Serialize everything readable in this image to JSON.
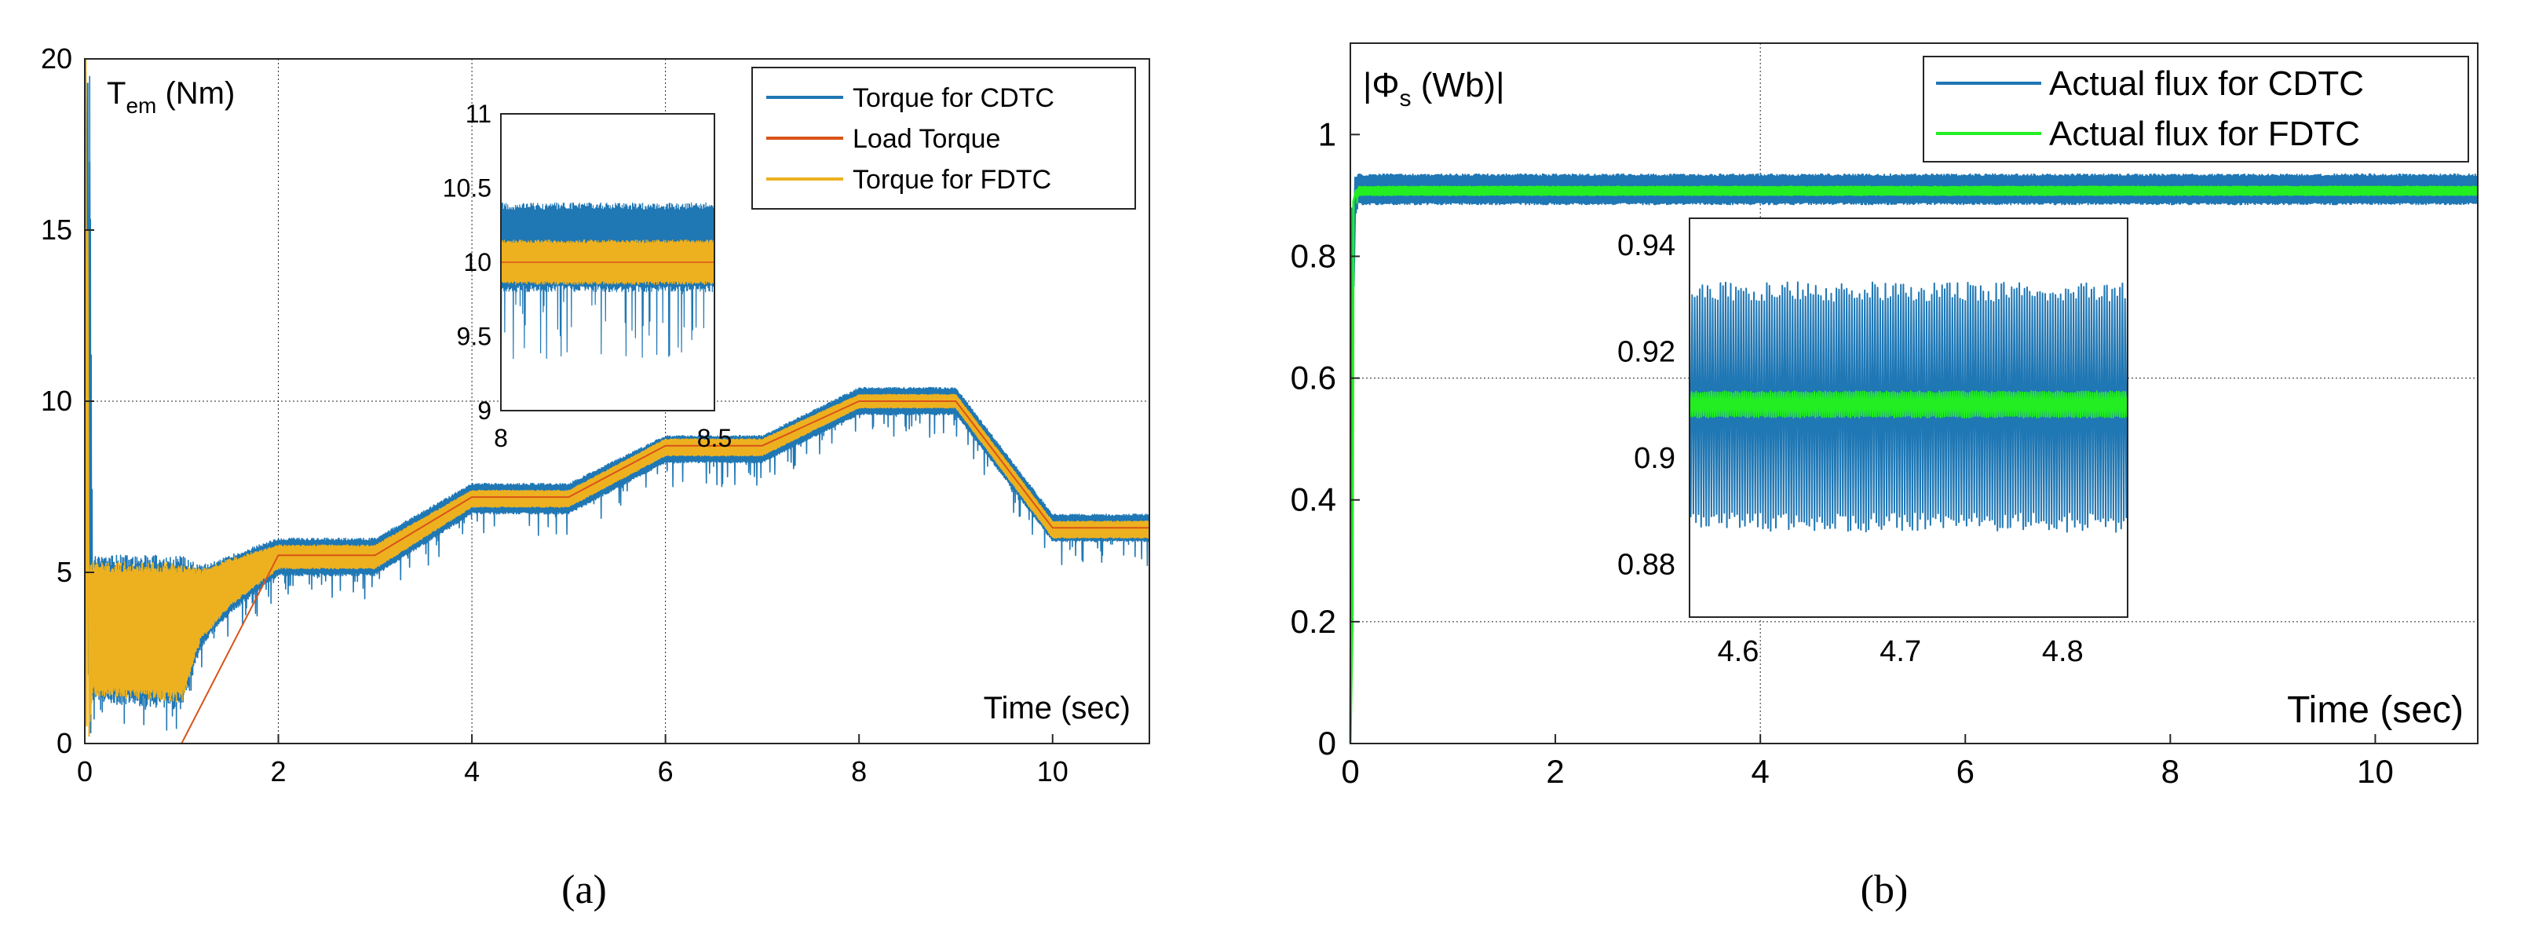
{
  "chart_data": [
    {
      "type": "line",
      "panel_label": "(a)",
      "title": "",
      "ylabel_main": "T",
      "ylabel_sub": "em",
      "ylabel_unit": " (Nm)",
      "xlabel": "Time (sec)",
      "xlim": [
        0,
        11
      ],
      "ylim": [
        0,
        20
      ],
      "xticks": [
        "0",
        "2",
        "4",
        "6",
        "8",
        "10"
      ],
      "yticks": [
        "0",
        "5",
        "10",
        "15",
        "20"
      ],
      "grid": true,
      "legend_position": "top-right",
      "series": [
        {
          "name": "Torque for CDTC",
          "color": "#1f77b4",
          "envelope": {
            "x": [
              0,
              0.03,
              0.05,
              0.08,
              1.0,
              1.2,
              1.5,
              2.0,
              3.0,
              4.0,
              5.0,
              6.0,
              7.0,
              8.0,
              9.0,
              10.0,
              11.0
            ],
            "upper": [
              0,
              19.5,
              19.5,
              5.5,
              5.5,
              5.2,
              5.5,
              6.0,
              6.0,
              7.6,
              7.6,
              9.0,
              9.0,
              10.4,
              10.4,
              6.7,
              6.7
            ],
            "lower": [
              0,
              12.0,
              0,
              1.2,
              1.0,
              2.8,
              3.8,
              4.9,
              4.9,
              6.7,
              6.7,
              8.2,
              8.2,
              9.6,
              9.6,
              5.9,
              5.9
            ]
          }
        },
        {
          "name": "Load Torque",
          "color": "#d95319",
          "x": [
            0,
            1,
            2,
            3,
            4,
            5,
            6,
            7,
            8,
            9,
            10,
            11
          ],
          "y": [
            0,
            0,
            5.5,
            5.5,
            7.2,
            7.2,
            8.7,
            8.7,
            10.0,
            10.0,
            6.3,
            6.3
          ]
        },
        {
          "name": "Torque for FDTC",
          "color": "#edb120",
          "envelope": {
            "x": [
              0.05,
              0.08,
              1.0,
              1.2,
              1.5,
              2.0,
              3.0,
              4.0,
              5.0,
              6.0,
              7.0,
              8.0,
              9.0,
              10.0,
              11.0
            ],
            "upper": [
              5.3,
              5.3,
              5.3,
              5.1,
              5.4,
              5.8,
              5.8,
              7.4,
              7.4,
              8.9,
              8.9,
              10.2,
              10.2,
              6.5,
              6.5
            ],
            "lower": [
              0.3,
              1.4,
              1.2,
              3.0,
              4.0,
              5.1,
              5.1,
              6.9,
              6.9,
              8.4,
              8.4,
              9.8,
              9.8,
              6.0,
              6.0
            ]
          }
        }
      ],
      "inset": {
        "xlim": [
          8,
          8.5
        ],
        "ylim": [
          9,
          11
        ],
        "xticks": [
          "8",
          "8.5"
        ],
        "yticks": [
          "9",
          "9.5",
          "10",
          "10.5",
          "11"
        ],
        "cdtc_band": [
          9.8,
          10.4
        ],
        "fdtc_band": [
          9.85,
          10.15
        ]
      }
    },
    {
      "type": "line",
      "panel_label": "(b)",
      "title": "",
      "ylabel_main": "|Φ",
      "ylabel_sub": "s",
      "ylabel_unit": " (Wb)|",
      "xlabel": "Time (sec)",
      "xlim": [
        0,
        11
      ],
      "ylim": [
        0,
        1.15
      ],
      "xticks": [
        "0",
        "2",
        "4",
        "6",
        "8",
        "10"
      ],
      "yticks": [
        "0",
        "0.2",
        "0.4",
        "0.6",
        "0.8",
        "1"
      ],
      "grid": true,
      "legend_position": "top-right",
      "series": [
        {
          "name": "Actual flux for CDTC",
          "color": "#1f77b4",
          "envelope": {
            "x": [
              0,
              0.02,
              0.04,
              0.08,
              11
            ],
            "upper": [
              0,
              0.86,
              0.93,
              0.935,
              0.935
            ],
            "lower": [
              0,
              0.2,
              0.86,
              0.885,
              0.885
            ]
          }
        },
        {
          "name": "Actual flux for FDTC",
          "color": "#22ee22",
          "envelope": {
            "x": [
              0,
              0.03,
              0.08,
              11
            ],
            "upper": [
              0,
              0.9,
              0.915,
              0.915
            ],
            "lower": [
              0,
              0.85,
              0.9,
              0.9
            ]
          }
        }
      ],
      "inset": {
        "xlim": [
          4.57,
          4.84
        ],
        "ylim": [
          0.87,
          0.945
        ],
        "xticks": [
          "4.6",
          "4.7",
          "4.8"
        ],
        "yticks": [
          "0.88",
          "0.9",
          "0.92",
          "0.94"
        ],
        "cdtc_band": [
          0.886,
          0.933
        ],
        "fdtc_band": [
          0.9075,
          0.9125
        ]
      }
    }
  ]
}
